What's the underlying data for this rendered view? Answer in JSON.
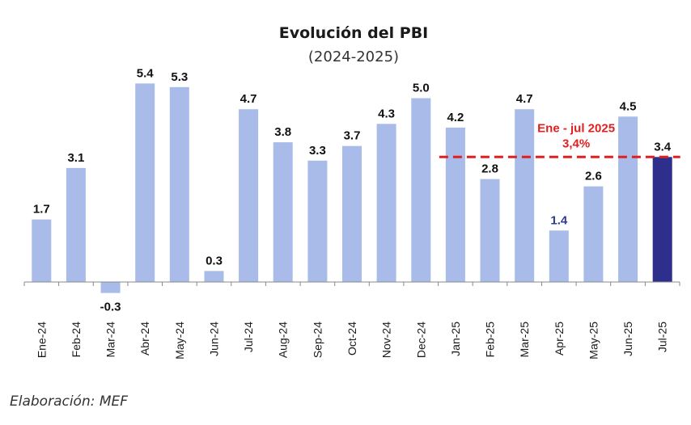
{
  "chart_data": {
    "type": "bar",
    "title": "Evolución del PBI",
    "subtitle": "(2024-2025)",
    "categories": [
      "Ene-24",
      "Feb-24",
      "Mar-24",
      "Abr-24",
      "May-24",
      "Jun-24",
      "Jul-24",
      "Aug-24",
      "Sep-24",
      "Oct-24",
      "Nov-24",
      "Dec-24",
      "Jan-25",
      "Feb-25",
      "Mar-25",
      "Apr-25",
      "May-25",
      "Jun-25",
      "Jul-25"
    ],
    "values": [
      1.7,
      3.1,
      -0.3,
      5.4,
      5.3,
      0.3,
      4.7,
      3.8,
      3.3,
      3.7,
      4.3,
      5.0,
      4.2,
      2.8,
      4.7,
      1.4,
      2.6,
      4.5,
      3.4
    ],
    "value_labels": [
      "1.7",
      "3.1",
      "-0.3",
      "5.4",
      "5.3",
      "0.3",
      "4.7",
      "3.8",
      "3.3",
      "3.7",
      "4.3",
      "5.0",
      "4.2",
      "2.8",
      "4.7",
      "1.4",
      "2.6",
      "4.5",
      "3.4"
    ],
    "highlight_index": 18,
    "highlight_label_index": 15,
    "ylim": [
      -0.3,
      5.4
    ],
    "grid": false,
    "reference_line": {
      "value": 3.4,
      "start_category": "Jan-25",
      "end_category": "Jul-25",
      "label_line1": "Ene - jul 2025",
      "label_line2": "3,4%"
    },
    "colors": {
      "bar": "#a8bbe9",
      "highlight_bar": "#2e2f8c",
      "reference": "#e02020",
      "highlight_label": "#2e3b8a",
      "axis": "#888888",
      "label": "#111111"
    }
  },
  "source": "Elaboración: MEF"
}
